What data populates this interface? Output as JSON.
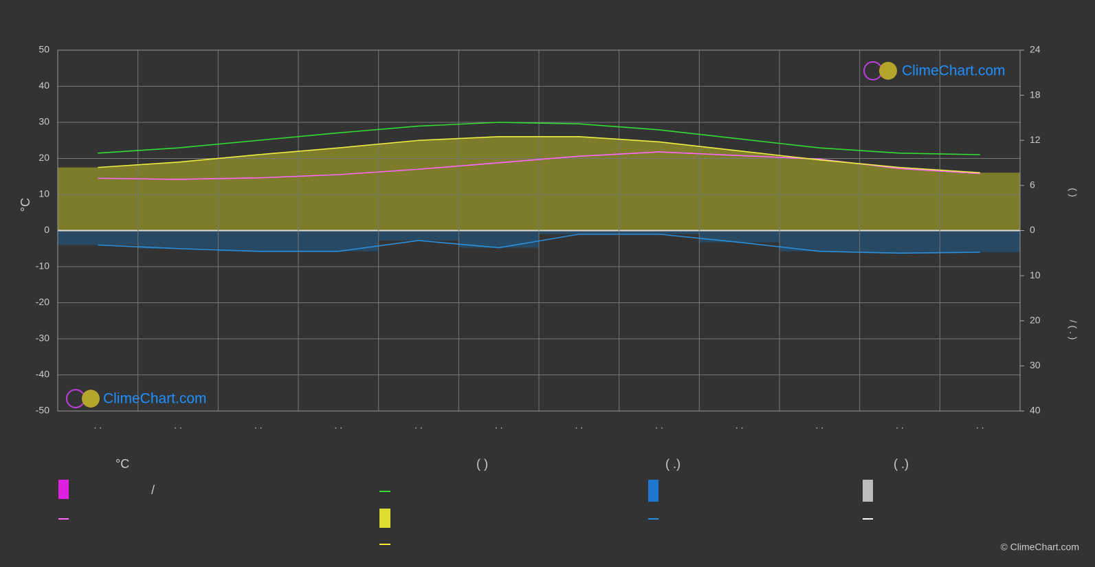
{
  "chart_data": {
    "type": "line",
    "ylabel": "°C",
    "y2label": "(      )",
    "y3label": "/   ( . )",
    "categories": [
      ". .",
      ". .",
      ". .",
      ". .",
      ". .",
      ". .",
      ". .",
      ". .",
      ". .",
      ". .",
      ". .",
      ". ."
    ],
    "ylim": [
      -50,
      50
    ],
    "yticks": [
      -50,
      -40,
      -30,
      -20,
      -10,
      0,
      10,
      20,
      30,
      40,
      50
    ],
    "y2lim": [
      0,
      24
    ],
    "y2ticks": [
      0,
      6,
      12,
      18,
      24
    ],
    "y3lim": [
      0,
      40
    ],
    "y3ticks": [
      0,
      10,
      20,
      30,
      40
    ],
    "grid": true,
    "series": [
      {
        "name": "°C",
        "color": "#ff66ff",
        "axis": "y",
        "values": [
          14.5,
          14.2,
          14.6,
          15.5,
          17,
          18.8,
          20.6,
          21.8,
          20.8,
          19.8,
          17.2,
          15.8
        ]
      },
      {
        "name": "(      )",
        "color": "#33dd33",
        "axis": "y2",
        "values": [
          10.3,
          11.0,
          12.0,
          13.0,
          13.9,
          14.4,
          14.2,
          13.4,
          12.2,
          11.0,
          10.3,
          10.1
        ]
      },
      {
        "name": "/",
        "color": "#eeee44",
        "axis": "y2",
        "values": [
          8.4,
          9.1,
          10.1,
          11.0,
          12.0,
          12.5,
          12.5,
          11.8,
          10.6,
          9.4,
          8.4,
          7.7
        ]
      },
      {
        "name": "(   .)",
        "color": "#2a8fdd",
        "axis": "y3",
        "values": [
          3.2,
          4.0,
          4.6,
          4.6,
          2.2,
          3.8,
          0.8,
          0.8,
          2.6,
          4.6,
          5.0,
          4.8
        ]
      }
    ],
    "legend_extra": "(   .)"
  },
  "logo": "ClimeChart.com",
  "copyright": "© ClimeChart.com"
}
